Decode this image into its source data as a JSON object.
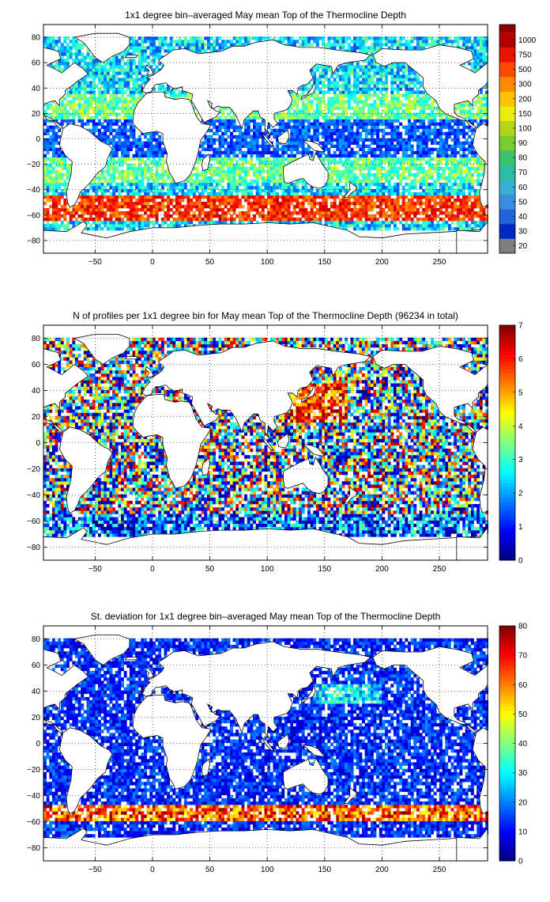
{
  "figure": {
    "background": "#ffffff"
  },
  "chart_data": [
    {
      "type": "heatmap",
      "title": "1x1 degree bin–averaged May mean Top of the Thermocline Depth",
      "xlim": [
        -95,
        292
      ],
      "ylim": [
        -90,
        90
      ],
      "xticks": [
        -50,
        0,
        50,
        100,
        150,
        200,
        250
      ],
      "yticks": [
        -80,
        -60,
        -40,
        -20,
        0,
        20,
        40,
        60,
        80
      ],
      "grid": "dotted",
      "colorbar": {
        "scale": "categorical",
        "labels": [
          "20",
          "30",
          "40",
          "50",
          "60",
          "70",
          "80",
          "90",
          "100",
          "150",
          "200",
          "300",
          "500",
          "750",
          "1000"
        ],
        "colors": [
          "#7f7f7f",
          "#0028c8",
          "#2462dc",
          "#3a8ee2",
          "#35b0d0",
          "#28bfa4",
          "#38c36c",
          "#78cc30",
          "#b4d418",
          "#ecec10",
          "#ffc000",
          "#ff8a00",
          "#ff4a00",
          "#e81400",
          "#b00000"
        ],
        "top_color": "#8c0000"
      },
      "colormap": "jet"
    },
    {
      "type": "heatmap",
      "title": "N of profiles per 1x1 degree bin for May mean Top of the Thermocline Depth  (96234 in total)",
      "xlim": [
        -95,
        292
      ],
      "ylim": [
        -90,
        90
      ],
      "xticks": [
        -50,
        0,
        50,
        100,
        150,
        200,
        250
      ],
      "yticks": [
        -80,
        -60,
        -40,
        -20,
        0,
        20,
        40,
        60,
        80
      ],
      "grid": "dotted",
      "colorbar": {
        "scale": "continuous",
        "labels": [
          "0",
          "1",
          "2",
          "3",
          "4",
          "5",
          "6",
          "7"
        ],
        "range": [
          0,
          7
        ]
      },
      "colormap": "jet"
    },
    {
      "type": "heatmap",
      "title": "St. deviation for 1x1 degree bin–averaged May mean Top of the Thermocline Depth",
      "xlim": [
        -95,
        292
      ],
      "ylim": [
        -90,
        90
      ],
      "xticks": [
        -50,
        0,
        50,
        100,
        150,
        200,
        250
      ],
      "yticks": [
        -80,
        -60,
        -40,
        -20,
        0,
        20,
        40,
        60,
        80
      ],
      "grid": "dotted",
      "colorbar": {
        "scale": "continuous",
        "labels": [
          "0",
          "10",
          "20",
          "30",
          "40",
          "50",
          "60",
          "70",
          "80"
        ],
        "range": [
          0,
          80
        ]
      },
      "colormap": "jet"
    }
  ]
}
